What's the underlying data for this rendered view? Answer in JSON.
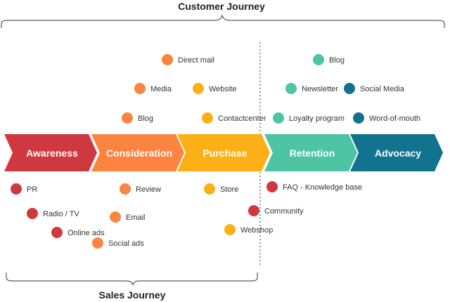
{
  "titles": {
    "top": "Customer Journey",
    "bottom": "Sales Journey"
  },
  "colors": {
    "awareness": "#d0383f",
    "consideration": "#fd8440",
    "purchase": "#fdb015",
    "retention": "#4dc4a4",
    "advocacy": "#11738e"
  },
  "stages": [
    {
      "label": "Awareness",
      "color": "#d0383f"
    },
    {
      "label": "Consideration",
      "color": "#fd8440"
    },
    {
      "label": "Purchase",
      "color": "#fdb015"
    },
    {
      "label": "Retention",
      "color": "#4dc4a4"
    },
    {
      "label": "Advocacy",
      "color": "#11738e"
    }
  ],
  "touchpoints": [
    {
      "label": "Direct mail",
      "stage": 1
    },
    {
      "label": "Media",
      "stage": 1
    },
    {
      "label": "Website",
      "stage": 2
    },
    {
      "label": "Blog",
      "stage": 1
    },
    {
      "label": "Contactcenter",
      "stage": 2
    },
    {
      "label": "Blog",
      "stage": 3
    },
    {
      "label": "Newsletter",
      "stage": 3
    },
    {
      "label": "Social Media",
      "stage": 4
    },
    {
      "label": "Loyalty program",
      "stage": 3
    },
    {
      "label": "Word-of-mouth",
      "stage": 4
    },
    {
      "label": "PR",
      "stage": 0
    },
    {
      "label": "Review",
      "stage": 1
    },
    {
      "label": "Store",
      "stage": 2
    },
    {
      "label": "FAQ - Knowledge base",
      "stage": 0
    },
    {
      "label": "Radio / TV",
      "stage": 0
    },
    {
      "label": "Email",
      "stage": 1
    },
    {
      "label": "Community",
      "stage": 0
    },
    {
      "label": "Online ads",
      "stage": 0
    },
    {
      "label": "Webshop",
      "stage": 2
    },
    {
      "label": "Social ads",
      "stage": 1
    }
  ]
}
